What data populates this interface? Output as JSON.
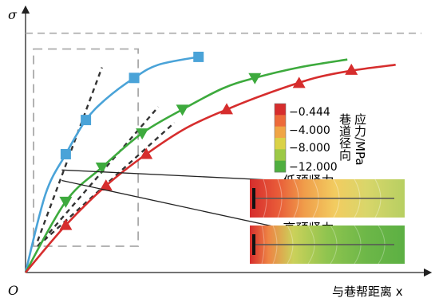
{
  "chart_data": {
    "type": "line",
    "title": "",
    "xlabel": "与巷帮距离 x",
    "ylabel": "σ",
    "origin_label": "O",
    "xlim": [
      0,
      100
    ],
    "ylim": [
      0,
      100
    ],
    "reference_line_y": 91,
    "series": [
      {
        "color": "#4aa3d8",
        "marker": "square",
        "x": [
          0,
          5,
          10,
          15,
          20,
          27,
          33,
          43
        ],
        "y": [
          0,
          30,
          45,
          58,
          66,
          74,
          79,
          82
        ],
        "marker_x": [
          10,
          15,
          27,
          43
        ],
        "marker_y": [
          45,
          58,
          74,
          82
        ]
      },
      {
        "color": "#3daa3d",
        "marker": "triangle-down",
        "x": [
          0,
          10,
          19,
          29,
          39,
          49,
          57,
          68,
          80
        ],
        "y": [
          0,
          27,
          40,
          53,
          62,
          70,
          74,
          78,
          81
        ],
        "marker_x": [
          10,
          19,
          29,
          39,
          57
        ],
        "marker_y": [
          27,
          40,
          53,
          62,
          74
        ]
      },
      {
        "color": "#d62d2d",
        "marker": "triangle-up",
        "x": [
          0,
          10,
          20,
          30,
          40,
          50,
          60,
          72,
          82,
          92
        ],
        "y": [
          0,
          18,
          33,
          45,
          55,
          62,
          68,
          74,
          77,
          79
        ],
        "marker_x": [
          10,
          20,
          30,
          50,
          68,
          81
        ],
        "marker_y": [
          18,
          33,
          45,
          62,
          72,
          77
        ]
      }
    ],
    "tangent_lines": [
      {
        "x": [
          3,
          19
        ],
        "y": [
          12,
          78
        ]
      },
      {
        "x": [
          3,
          33
        ],
        "y": [
          10,
          63
        ]
      },
      {
        "x": [
          3,
          37
        ],
        "y": [
          10,
          57
        ]
      }
    ],
    "dashed_box": {
      "x": [
        2,
        28
      ],
      "y": [
        10,
        85
      ]
    },
    "annotations": [
      {
        "text": "低预紧力",
        "from": [
          9,
          39
        ],
        "to": [
          64,
          35
        ]
      },
      {
        "text": "高预紧力",
        "from": [
          9,
          35
        ],
        "to": [
          64,
          17
        ]
      }
    ]
  },
  "colorbar": {
    "title_line1": "巷道径向",
    "title_line2": "应力/MPa",
    "ticks": [
      "−0.444",
      "−4.000",
      "−8.000",
      "−12.000"
    ],
    "colors": [
      "#d62d2d",
      "#ed6a3a",
      "#f0a545",
      "#dad246",
      "#9cc946",
      "#4fae3f"
    ]
  }
}
